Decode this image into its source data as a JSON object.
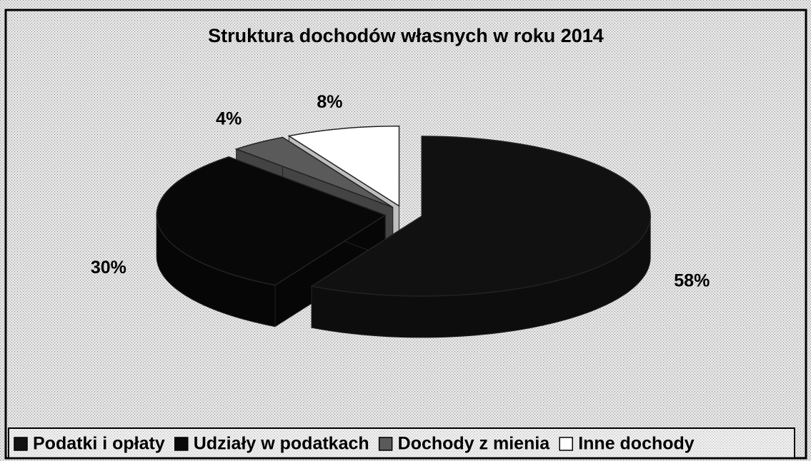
{
  "chart_data": {
    "type": "pie3d",
    "title": "Struktura dochodów własnych w roku 2014",
    "categories": [
      "Podatki i opłaty",
      "Udziały w podatkach",
      "Dochody z mienia",
      "Inne dochody"
    ],
    "values": [
      58,
      30,
      4,
      8
    ],
    "value_labels": [
      "58%",
      "30%",
      "4%",
      "8%"
    ],
    "colors": [
      "#111111",
      "#080808",
      "#5a5a5a",
      "#ffffff"
    ],
    "legend": "bottom"
  }
}
